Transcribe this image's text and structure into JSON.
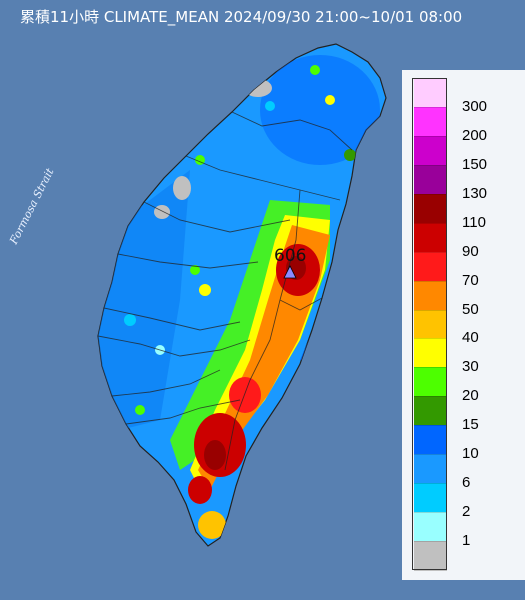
{
  "title": "累積11小時 CLIMATE_MEAN 2024/09/30 21:00~10/01 08:00",
  "water_label": "Formosa Strait",
  "max_marker": {
    "value": "606",
    "symbol": "triangle"
  },
  "legend": {
    "title": "",
    "levels": [
      {
        "label": "300",
        "color": "#ffccff"
      },
      {
        "label": "200",
        "color": "#ff33ff"
      },
      {
        "label": "150",
        "color": "#cc00cc"
      },
      {
        "label": "130",
        "color": "#99009a"
      },
      {
        "label": "110",
        "color": "#990000"
      },
      {
        "label": "90",
        "color": "#cc0000"
      },
      {
        "label": "70",
        "color": "#ff1a1a"
      },
      {
        "label": "50",
        "color": "#ff8800"
      },
      {
        "label": "40",
        "color": "#ffc300"
      },
      {
        "label": "30",
        "color": "#ffff00"
      },
      {
        "label": "20",
        "color": "#4dff00"
      },
      {
        "label": "15",
        "color": "#339900"
      },
      {
        "label": "10",
        "color": "#0066ff"
      },
      {
        "label": "6",
        "color": "#1a99ff"
      },
      {
        "label": "2",
        "color": "#00ccff"
      },
      {
        "label": "1",
        "color": "#99ffff"
      },
      {
        "label": "",
        "color": "#c0c0c0"
      }
    ]
  }
}
